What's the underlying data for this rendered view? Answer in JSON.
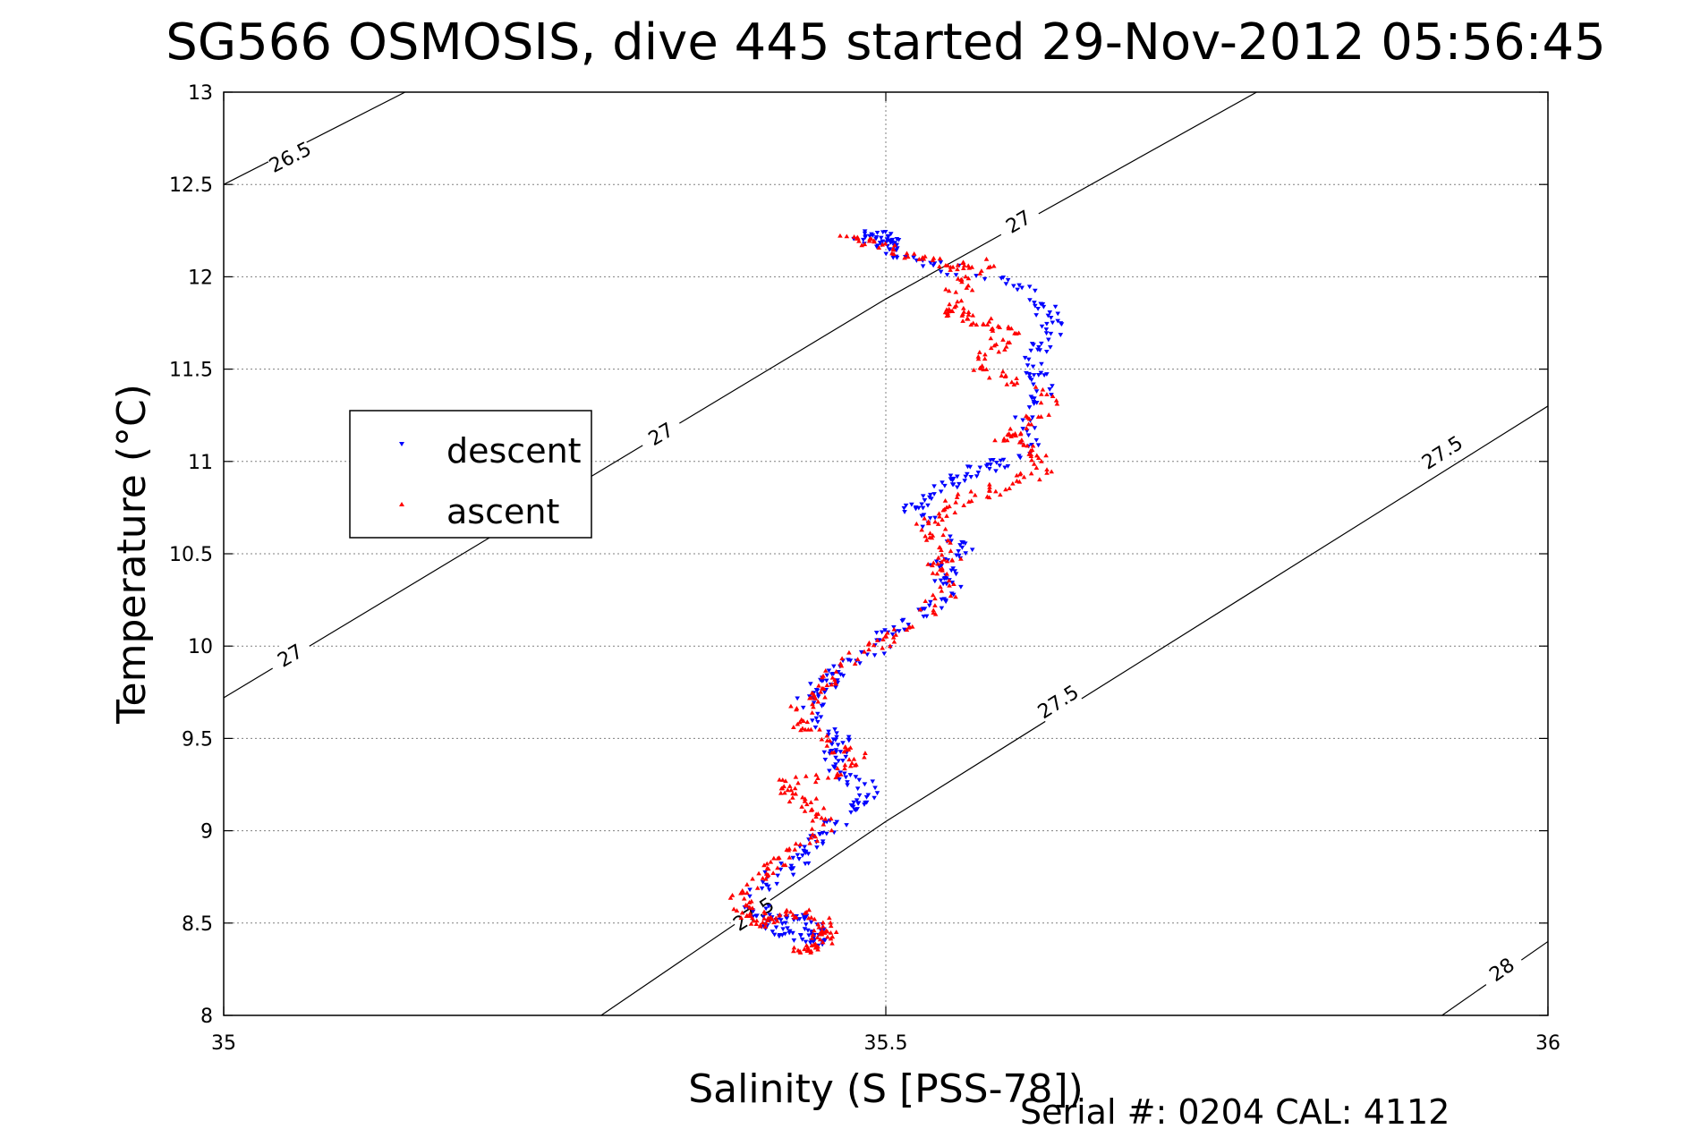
{
  "chart_data": {
    "type": "scatter",
    "title": "SG566 OSMOSIS, dive 445 started 29-Nov-2012 05:56:45",
    "xlabel": "Salinity (S [PSS-78])",
    "ylabel": "Temperature (°C)",
    "xlim": [
      35,
      36
    ],
    "ylim": [
      8,
      13
    ],
    "xticks": [
      35,
      35.5,
      36
    ],
    "xtick_labels": [
      "35",
      "35.5",
      "36"
    ],
    "yticks": [
      8,
      8.5,
      9,
      9.5,
      10,
      10.5,
      11,
      11.5,
      12,
      12.5,
      13
    ],
    "ytick_labels": [
      "8",
      "8.5",
      "9",
      "9.5",
      "10",
      "10.5",
      "11",
      "11.5",
      "12",
      "12.5",
      "13"
    ],
    "grid": true,
    "legend_position": "upper-left",
    "footer": "Serial #: 0204  CAL: 4112",
    "colors": {
      "descent": "#0000ff",
      "ascent": "#ff0000",
      "contour": "#000000",
      "grid": "#808080"
    },
    "contours": [
      {
        "label": "26.5",
        "points": [
          [
            35,
            12.5
          ],
          [
            35.137,
            13.0
          ]
        ],
        "label_positions": [
          [
            35.05,
            12.65
          ]
        ]
      },
      {
        "label": "27",
        "points": [
          [
            35,
            9.72
          ],
          [
            35.5,
            11.88
          ],
          [
            35.78,
            13.0
          ]
        ],
        "label_positions": [
          [
            35.05,
            9.95
          ],
          [
            35.33,
            11.15
          ],
          [
            35.6,
            12.3
          ]
        ]
      },
      {
        "label": "27.5",
        "points": [
          [
            35.285,
            8.0
          ],
          [
            35.5,
            9.05
          ],
          [
            36,
            11.3
          ]
        ],
        "label_positions": [
          [
            35.4,
            8.55
          ],
          [
            35.63,
            9.7
          ],
          [
            35.92,
            11.05
          ]
        ]
      },
      {
        "label": "28",
        "points": [
          [
            35.92,
            8.0
          ],
          [
            36,
            8.4
          ]
        ],
        "label_positions": [
          [
            35.965,
            8.25
          ]
        ]
      }
    ],
    "series": [
      {
        "name": "descent",
        "marker": "triangle-down",
        "path": [
          [
            35.48,
            12.2
          ],
          [
            35.49,
            12.23
          ],
          [
            35.505,
            12.2
          ],
          [
            35.5,
            12.16
          ],
          [
            35.52,
            12.1
          ],
          [
            35.555,
            12.03
          ],
          [
            35.6,
            11.97
          ],
          [
            35.62,
            11.85
          ],
          [
            35.625,
            11.72
          ],
          [
            35.615,
            11.6
          ],
          [
            35.61,
            11.48
          ],
          [
            35.62,
            11.38
          ],
          [
            35.6,
            11.25
          ],
          [
            35.61,
            11.1
          ],
          [
            35.59,
            11.0
          ],
          [
            35.57,
            10.95
          ],
          [
            35.55,
            10.88
          ],
          [
            35.53,
            10.78
          ],
          [
            35.52,
            10.72
          ],
          [
            35.545,
            10.62
          ],
          [
            35.56,
            10.52
          ],
          [
            35.54,
            10.43
          ],
          [
            35.55,
            10.32
          ],
          [
            35.535,
            10.2
          ],
          [
            35.51,
            10.1
          ],
          [
            35.49,
            9.98
          ],
          [
            35.47,
            9.88
          ],
          [
            35.455,
            9.8
          ],
          [
            35.44,
            9.72
          ],
          [
            35.45,
            9.6
          ],
          [
            35.465,
            9.5
          ],
          [
            35.46,
            9.4
          ],
          [
            35.47,
            9.3
          ],
          [
            35.49,
            9.22
          ],
          [
            35.48,
            9.12
          ],
          [
            35.46,
            9.02
          ],
          [
            35.445,
            8.92
          ],
          [
            35.43,
            8.82
          ],
          [
            35.41,
            8.72
          ],
          [
            35.4,
            8.62
          ],
          [
            35.41,
            8.52
          ],
          [
            35.42,
            8.45
          ],
          [
            35.44,
            8.42
          ],
          [
            35.45,
            8.4
          ],
          [
            35.445,
            8.5
          ],
          [
            35.43,
            8.52
          ],
          [
            35.41,
            8.5
          ]
        ],
        "count": 520
      },
      {
        "name": "ascent",
        "marker": "triangle-up",
        "path": [
          [
            35.43,
            8.35
          ],
          [
            35.45,
            8.37
          ],
          [
            35.455,
            8.45
          ],
          [
            35.45,
            8.55
          ],
          [
            35.42,
            8.55
          ],
          [
            35.405,
            8.5
          ],
          [
            35.395,
            8.55
          ],
          [
            35.39,
            8.65
          ],
          [
            35.405,
            8.75
          ],
          [
            35.42,
            8.85
          ],
          [
            35.44,
            8.95
          ],
          [
            35.455,
            9.05
          ],
          [
            35.44,
            9.15
          ],
          [
            35.42,
            9.25
          ],
          [
            35.46,
            9.3
          ],
          [
            35.48,
            9.4
          ],
          [
            35.45,
            9.5
          ],
          [
            35.43,
            9.6
          ],
          [
            35.44,
            9.7
          ],
          [
            35.455,
            9.8
          ],
          [
            35.47,
            9.9
          ],
          [
            35.49,
            10.0
          ],
          [
            35.51,
            10.08
          ],
          [
            35.535,
            10.2
          ],
          [
            35.55,
            10.32
          ],
          [
            35.54,
            10.42
          ],
          [
            35.55,
            10.5
          ],
          [
            35.54,
            10.58
          ],
          [
            35.53,
            10.68
          ],
          [
            35.55,
            10.76
          ],
          [
            35.57,
            10.82
          ],
          [
            35.6,
            10.9
          ],
          [
            35.62,
            10.97
          ],
          [
            35.61,
            11.05
          ],
          [
            35.59,
            11.12
          ],
          [
            35.61,
            11.22
          ],
          [
            35.625,
            11.32
          ],
          [
            35.6,
            11.42
          ],
          [
            35.575,
            11.5
          ],
          [
            35.58,
            11.62
          ],
          [
            35.6,
            11.7
          ],
          [
            35.575,
            11.75
          ],
          [
            35.555,
            11.8
          ],
          [
            35.545,
            11.85
          ],
          [
            35.56,
            11.95
          ],
          [
            35.575,
            12.08
          ],
          [
            35.555,
            12.05
          ],
          [
            35.515,
            12.12
          ],
          [
            35.49,
            12.18
          ],
          [
            35.47,
            12.2
          ]
        ],
        "count": 560
      }
    ]
  }
}
